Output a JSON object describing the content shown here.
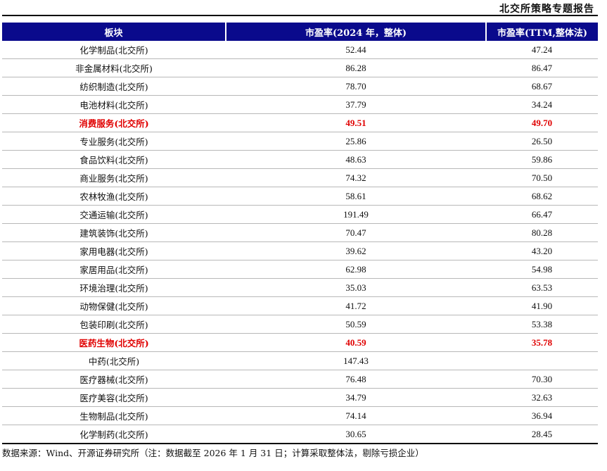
{
  "header": {
    "report_title": "北交所策略专题报告"
  },
  "table": {
    "columns": [
      "板块",
      "市盈率(2024 年，整体)",
      "市盈率(TTM,整体法)"
    ],
    "rows": [
      {
        "sector": "化学制品(北交所)",
        "pe_2024": "52.44",
        "pe_ttm": "47.24",
        "highlight": false
      },
      {
        "sector": "非金属材料(北交所)",
        "pe_2024": "86.28",
        "pe_ttm": "86.47",
        "highlight": false
      },
      {
        "sector": "纺织制造(北交所)",
        "pe_2024": "78.70",
        "pe_ttm": "68.67",
        "highlight": false
      },
      {
        "sector": "电池材料(北交所)",
        "pe_2024": "37.79",
        "pe_ttm": "34.24",
        "highlight": false
      },
      {
        "sector": "消费服务(北交所)",
        "pe_2024": "49.51",
        "pe_ttm": "49.70",
        "highlight": true
      },
      {
        "sector": "专业服务(北交所)",
        "pe_2024": "25.86",
        "pe_ttm": "26.50",
        "highlight": false
      },
      {
        "sector": "食品饮料(北交所)",
        "pe_2024": "48.63",
        "pe_ttm": "59.86",
        "highlight": false
      },
      {
        "sector": "商业服务(北交所)",
        "pe_2024": "74.32",
        "pe_ttm": "70.50",
        "highlight": false
      },
      {
        "sector": "农林牧渔(北交所)",
        "pe_2024": "58.61",
        "pe_ttm": "68.62",
        "highlight": false
      },
      {
        "sector": "交通运输(北交所)",
        "pe_2024": "191.49",
        "pe_ttm": "66.47",
        "highlight": false
      },
      {
        "sector": "建筑装饰(北交所)",
        "pe_2024": "70.47",
        "pe_ttm": "80.28",
        "highlight": false
      },
      {
        "sector": "家用电器(北交所)",
        "pe_2024": "39.62",
        "pe_ttm": "43.20",
        "highlight": false
      },
      {
        "sector": "家居用品(北交所)",
        "pe_2024": "62.98",
        "pe_ttm": "54.98",
        "highlight": false
      },
      {
        "sector": "环境治理(北交所)",
        "pe_2024": "35.03",
        "pe_ttm": "63.53",
        "highlight": false
      },
      {
        "sector": "动物保健(北交所)",
        "pe_2024": "41.72",
        "pe_ttm": "41.90",
        "highlight": false
      },
      {
        "sector": "包装印刷(北交所)",
        "pe_2024": "50.59",
        "pe_ttm": "53.38",
        "highlight": false
      },
      {
        "sector": "医药生物(北交所)",
        "pe_2024": "40.59",
        "pe_ttm": "35.78",
        "highlight": true
      },
      {
        "sector": "中药(北交所)",
        "pe_2024": "147.43",
        "pe_ttm": "",
        "highlight": false
      },
      {
        "sector": "医疗器械(北交所)",
        "pe_2024": "76.48",
        "pe_ttm": "70.30",
        "highlight": false
      },
      {
        "sector": "医疗美容(北交所)",
        "pe_2024": "34.79",
        "pe_ttm": "32.63",
        "highlight": false
      },
      {
        "sector": "生物制品(北交所)",
        "pe_2024": "74.14",
        "pe_ttm": "36.94",
        "highlight": false
      },
      {
        "sector": "化学制药(北交所)",
        "pe_2024": "30.65",
        "pe_ttm": "28.45",
        "highlight": false
      }
    ]
  },
  "footer": {
    "source": "数据来源：Wind、开源证券研究所（注：数据截至 2026 年 1 月 31 日；计算采取整体法，剔除亏损企业）"
  },
  "colors": {
    "header_bg": "#0a0a8c",
    "highlight": "#e00000"
  }
}
